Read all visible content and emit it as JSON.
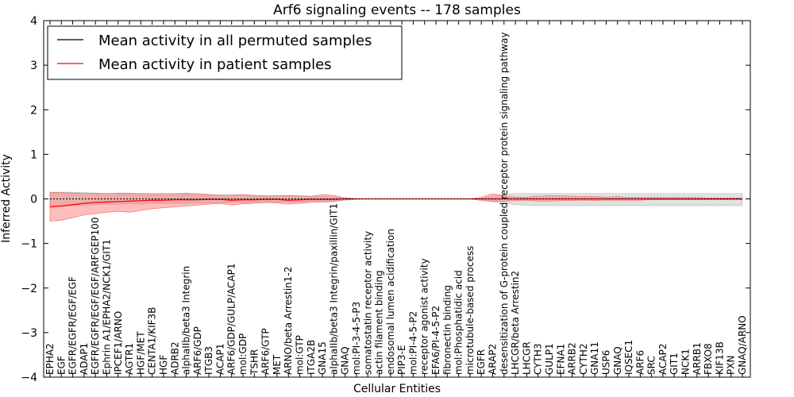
{
  "chart_data": {
    "type": "line",
    "title": "Arf6 signaling events -- 178 samples",
    "xlabel": "Cellular Entities",
    "ylabel": "Inferred Activity",
    "ylim": [
      -4,
      4
    ],
    "yticks": [
      "4",
      "3",
      "2",
      "1",
      "0",
      "−1",
      "−2",
      "−3",
      "−4"
    ],
    "grid": false,
    "legend_position": "top-left",
    "categories": [
      "EPHA2",
      "EGF",
      "EGFR/EGFR/EGF/EGF",
      "ADAP1",
      "EGFR/EGFR/EGF/EGF/ARFGEP100",
      "Ephrin A1/EPHA2/NCK1/GIT1",
      "IPCEF1/ARNO",
      "AGTR1",
      "HGF/MET",
      "CENTA1/KIF3B",
      "HGF",
      "ADRB2",
      "alphaIIb/beta3 Integrin",
      "ARF6/GDP",
      "ITGB3",
      "ACAP1",
      "ARF6/GDP/GULP/ACAP1",
      "mol:GDP",
      "TSHR",
      "ARF6/GTP",
      "MET",
      "ARNO/beta Arrestin1-2",
      "mol:GTP",
      "ITGA2B",
      "GNA15",
      "alphaIIb/beta3 Integrin/paxillin/GIT1",
      "GNAQ",
      "mol:PI-3-4-5-P3",
      "somatostatin receptor activity",
      "actin filament binding",
      "endosomal lumen acidification",
      "PIP3-E",
      "mol:PI-4-5-P2",
      "receptor agonist activity",
      "EFA6/PI-4-5-P2",
      "fibronectin binding",
      "mol:Phosphatidic acid",
      "microtubule-based process",
      "EGFR",
      "ARAP2",
      "desensitization of G-protein coupled receptor protein signaling pathway",
      "LHCGR/beta Arrestin2",
      "LHCGR",
      "CYTH3",
      "GULP1",
      "EFNA1",
      "ARRB2",
      "CYTH2",
      "GNA11",
      "USP6",
      "GNAQ",
      "IQSEC1",
      "ARF6",
      "SRC",
      "ACAP2",
      "GIT1",
      "NCK1",
      "ARRB1",
      "FBXO8",
      "KIF13B",
      "PXN",
      "GNAQ/ARNO"
    ],
    "series": [
      {
        "name": "Mean activity in all permuted samples",
        "color": "#000000",
        "values": [
          0.0,
          0.0,
          0.0,
          0.0,
          0.0,
          0.0,
          0.0,
          0.0,
          0.0,
          0.0,
          0.0,
          0.0,
          0.0,
          0.0,
          0.0,
          0.0,
          0.0,
          0.0,
          0.0,
          0.0,
          0.0,
          0.0,
          0.0,
          0.0,
          0.0,
          0.0,
          0.0,
          0.0,
          0.0,
          0.0,
          0.0,
          0.0,
          0.0,
          0.0,
          0.0,
          0.0,
          0.0,
          0.0,
          0.0,
          0.0,
          0.0,
          0.0,
          0.0,
          0.0,
          0.0,
          0.0,
          0.0,
          0.0,
          0.0,
          0.0,
          0.0,
          0.0,
          0.0,
          0.0,
          0.0,
          0.0,
          0.0,
          0.0,
          0.0,
          0.0,
          0.0,
          0.0
        ],
        "band_upper": [
          0.15,
          0.15,
          0.15,
          0.14,
          0.13,
          0.12,
          0.12,
          0.11,
          0.11,
          0.1,
          0.1,
          0.1,
          0.1,
          0.09,
          0.09,
          0.09,
          0.08,
          0.08,
          0.08,
          0.08,
          0.07,
          0.07,
          0.06,
          0.06,
          0.05,
          0.05,
          0.03,
          0.01,
          0.0,
          0.0,
          0.0,
          0.0,
          0.0,
          0.0,
          0.0,
          0.0,
          0.0,
          0.0,
          0.01,
          0.06,
          0.1,
          0.12,
          0.12,
          0.12,
          0.12,
          0.12,
          0.12,
          0.12,
          0.12,
          0.12,
          0.12,
          0.12,
          0.12,
          0.12,
          0.12,
          0.12,
          0.12,
          0.12,
          0.12,
          0.12,
          0.12,
          0.12
        ],
        "band_lower": [
          -0.15,
          -0.15,
          -0.15,
          -0.14,
          -0.13,
          -0.12,
          -0.12,
          -0.11,
          -0.11,
          -0.1,
          -0.1,
          -0.1,
          -0.1,
          -0.09,
          -0.09,
          -0.09,
          -0.08,
          -0.08,
          -0.08,
          -0.08,
          -0.07,
          -0.07,
          -0.06,
          -0.06,
          -0.05,
          -0.05,
          -0.03,
          -0.01,
          0.0,
          0.0,
          0.0,
          0.0,
          0.0,
          0.0,
          0.0,
          0.0,
          0.0,
          0.0,
          -0.02,
          -0.06,
          -0.1,
          -0.13,
          -0.14,
          -0.15,
          -0.15,
          -0.15,
          -0.15,
          -0.15,
          -0.15,
          -0.15,
          -0.15,
          -0.15,
          -0.15,
          -0.15,
          -0.15,
          -0.15,
          -0.15,
          -0.15,
          -0.15,
          -0.15,
          -0.15,
          -0.15
        ]
      },
      {
        "name": "Mean activity in patient samples",
        "color": "#ff0000",
        "values": [
          -0.18,
          -0.16,
          -0.13,
          -0.1,
          -0.08,
          -0.07,
          -0.06,
          -0.05,
          -0.04,
          -0.03,
          -0.03,
          -0.02,
          -0.02,
          -0.02,
          -0.01,
          -0.01,
          -0.03,
          -0.02,
          -0.02,
          -0.01,
          -0.01,
          -0.03,
          -0.02,
          -0.01,
          -0.01,
          -0.01,
          0.0,
          0.0,
          0.0,
          0.0,
          0.0,
          0.0,
          0.0,
          0.0,
          0.0,
          0.0,
          0.0,
          0.0,
          0.0,
          0.0,
          0.0,
          0.0,
          0.0,
          0.0,
          0.0,
          0.0,
          0.0,
          0.0,
          0.0,
          0.0,
          0.0,
          0.0,
          0.0,
          0.0,
          0.0,
          0.0,
          0.0,
          0.0,
          0.0,
          0.0,
          0.0,
          0.0
        ],
        "band_upper": [
          0.14,
          0.14,
          0.13,
          0.12,
          0.12,
          0.12,
          0.13,
          0.13,
          0.12,
          0.12,
          0.12,
          0.12,
          0.13,
          0.12,
          0.1,
          0.08,
          0.09,
          0.1,
          0.08,
          0.06,
          0.07,
          0.08,
          0.07,
          0.06,
          0.1,
          0.08,
          0.02,
          0.0,
          0.0,
          0.0,
          0.0,
          0.0,
          0.0,
          0.0,
          0.0,
          0.0,
          0.0,
          0.0,
          0.04,
          0.12,
          0.07,
          0.04,
          0.04,
          0.06,
          0.07,
          0.07,
          0.06,
          0.05,
          0.05,
          0.04,
          0.05,
          0.03,
          0.03,
          0.03,
          0.03,
          0.03,
          0.03,
          0.03,
          0.02,
          0.02,
          0.02,
          0.02
        ],
        "band_lower": [
          -0.5,
          -0.48,
          -0.42,
          -0.36,
          -0.33,
          -0.3,
          -0.28,
          -0.3,
          -0.26,
          -0.22,
          -0.2,
          -0.18,
          -0.16,
          -0.14,
          -0.12,
          -0.1,
          -0.14,
          -0.11,
          -0.1,
          -0.08,
          -0.09,
          -0.12,
          -0.1,
          -0.08,
          -0.07,
          -0.06,
          -0.02,
          0.0,
          0.0,
          0.0,
          0.0,
          0.0,
          0.0,
          0.0,
          0.0,
          0.0,
          0.0,
          0.0,
          -0.04,
          -0.06,
          -0.05,
          -0.04,
          -0.03,
          -0.05,
          -0.05,
          -0.04,
          -0.04,
          -0.03,
          -0.04,
          -0.03,
          -0.03,
          -0.03,
          -0.03,
          -0.02,
          -0.02,
          -0.02,
          -0.02,
          -0.02,
          -0.02,
          -0.02,
          -0.02,
          -0.02
        ]
      }
    ]
  }
}
